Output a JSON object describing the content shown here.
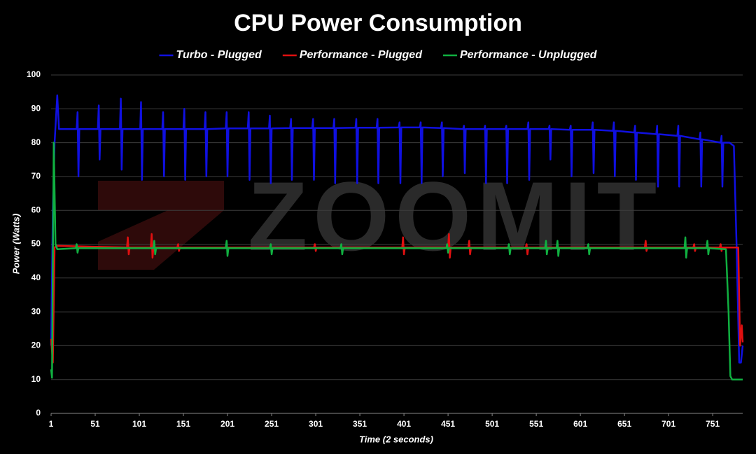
{
  "chart_data": {
    "type": "line",
    "title": "CPU Power Consumption",
    "xlabel": "Time (2 seconds)",
    "ylabel": "Power (Watts)",
    "watermark": "ZOOMIT",
    "xlim": [
      1,
      785
    ],
    "xticks": [
      1,
      51,
      101,
      151,
      201,
      251,
      301,
      351,
      401,
      451,
      501,
      551,
      601,
      651,
      701,
      751
    ],
    "ylim": [
      0,
      100
    ],
    "yticks": [
      0,
      10,
      20,
      30,
      40,
      50,
      60,
      70,
      80,
      90,
      100
    ],
    "grid": true,
    "legend": "top",
    "series": [
      {
        "name": "Turbo - Plugged",
        "color": "#1010e0",
        "x": [
          1,
          3,
          5,
          8,
          10,
          30,
          31,
          32,
          33,
          54,
          55,
          56,
          57,
          79,
          80,
          81,
          82,
          102,
          103,
          104,
          105,
          127,
          128,
          129,
          130,
          151,
          152,
          153,
          154,
          175,
          176,
          177,
          178,
          199,
          200,
          201,
          202,
          224,
          225,
          226,
          227,
          248,
          249,
          250,
          251,
          272,
          273,
          274,
          275,
          297,
          298,
          299,
          300,
          321,
          322,
          323,
          324,
          346,
          347,
          348,
          349,
          370,
          371,
          372,
          373,
          395,
          396,
          397,
          398,
          419,
          420,
          421,
          422,
          443,
          444,
          445,
          446,
          468,
          469,
          470,
          471,
          492,
          493,
          494,
          495,
          516,
          517,
          518,
          519,
          541,
          542,
          543,
          544,
          565,
          566,
          567,
          568,
          589,
          590,
          591,
          592,
          614,
          615,
          616,
          617,
          638,
          639,
          640,
          641,
          662,
          663,
          664,
          665,
          687,
          688,
          689,
          690,
          711,
          712,
          713,
          714,
          736,
          737,
          738,
          739,
          760,
          761,
          762,
          763,
          770,
          775,
          778,
          781,
          783,
          785
        ],
        "values": [
          20,
          60,
          80,
          94,
          84,
          84,
          89,
          70,
          84,
          84,
          91,
          75,
          84,
          84,
          93,
          72,
          84,
          84,
          92,
          69,
          84,
          84,
          89,
          70,
          84,
          84,
          90,
          69,
          84,
          84,
          89,
          70,
          84,
          84.2,
          89,
          70,
          84.2,
          84.2,
          89,
          69,
          84.2,
          84.2,
          88,
          68,
          84.2,
          84.3,
          87,
          69,
          84.3,
          84.3,
          87,
          69,
          84.3,
          84.3,
          87,
          68,
          84.3,
          84.4,
          87,
          68,
          84.4,
          84.4,
          87,
          68,
          84.4,
          84.5,
          86,
          68,
          84.5,
          84.5,
          86,
          68,
          84.5,
          84.3,
          86,
          70,
          84.3,
          84,
          85,
          71,
          84,
          84,
          85,
          68,
          84,
          84,
          85,
          68,
          84,
          84,
          86,
          69,
          84,
          84,
          85,
          75,
          84,
          83.8,
          85,
          70,
          83.8,
          83.8,
          86,
          71,
          83.8,
          83.5,
          86,
          70,
          83.5,
          83,
          85,
          69,
          83,
          82.5,
          85,
          67,
          82.5,
          82,
          85,
          67,
          82,
          81,
          83,
          67,
          81,
          80,
          82,
          67,
          80,
          80,
          79,
          50,
          15,
          15,
          20
        ]
      },
      {
        "name": "Performance - Plugged",
        "color": "#e01010",
        "x": [
          1,
          3,
          5,
          7,
          87,
          88,
          89,
          90,
          114,
          115,
          116,
          117,
          144,
          145,
          146,
          147,
          299,
          300,
          301,
          302,
          399,
          400,
          401,
          402,
          451,
          452,
          453,
          454,
          474,
          475,
          476,
          477,
          539,
          540,
          541,
          542,
          674,
          675,
          676,
          677,
          729,
          730,
          731,
          732,
          759,
          760,
          761,
          762,
          780,
          782,
          784,
          785
        ],
        "values": [
          22,
          15,
          49,
          49.5,
          49,
          52,
          47,
          49,
          49,
          53,
          46,
          49,
          49,
          50,
          48,
          49,
          49,
          50,
          48,
          49,
          49,
          52,
          47,
          49,
          49,
          53,
          46,
          49,
          49,
          51,
          47,
          49,
          49,
          50,
          47,
          49,
          49,
          51,
          48,
          49,
          49,
          50,
          48,
          49,
          49,
          50,
          48,
          49,
          49,
          20,
          26,
          21
        ]
      },
      {
        "name": "Performance - Unplugged",
        "color": "#10b040",
        "x": [
          1,
          2,
          4,
          6,
          8,
          29,
          30,
          31,
          32,
          117,
          118,
          119,
          120,
          199,
          200,
          201,
          202,
          249,
          250,
          251,
          252,
          329,
          330,
          331,
          332,
          449,
          450,
          451,
          452,
          519,
          520,
          521,
          522,
          561,
          562,
          563,
          564,
          574,
          575,
          576,
          577,
          609,
          610,
          611,
          612,
          719,
          720,
          721,
          722,
          744,
          745,
          746,
          747,
          766,
          769,
          771,
          773,
          785
        ],
        "values": [
          13,
          10.5,
          80,
          50,
          48.5,
          48.8,
          50,
          47.5,
          48.8,
          48.8,
          51,
          47,
          48.8,
          48.8,
          51,
          46.5,
          48.8,
          48.8,
          50,
          47,
          48.8,
          48.8,
          50,
          47,
          48.8,
          48.8,
          50,
          47.5,
          48.8,
          48.8,
          50,
          47,
          48.8,
          48.8,
          51,
          47,
          48.8,
          48.8,
          51,
          46.5,
          48.8,
          48.8,
          50,
          47,
          48.8,
          48.8,
          52,
          46,
          48.8,
          48.8,
          51,
          47,
          48.8,
          48.5,
          30,
          11,
          10,
          10
        ]
      }
    ]
  }
}
